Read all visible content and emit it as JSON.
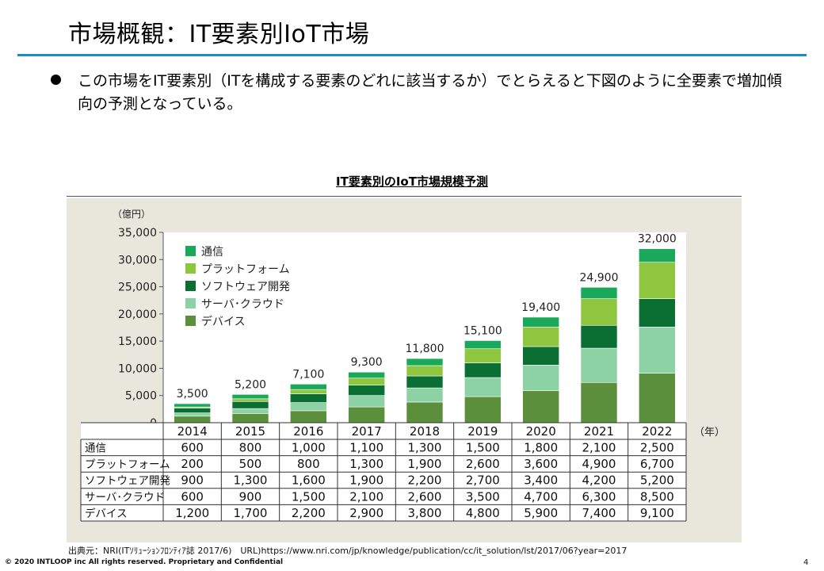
{
  "header": {
    "title": "市場概観：IT要素別IoT市場"
  },
  "bullet": {
    "text": "この市場をIT要素別（ITを構成する要素のどれに該当するか）でとらえると下図のように全要素で増加傾向の予測となっている。"
  },
  "chart_data": {
    "type": "bar",
    "stacked": true,
    "title": "IT要素別のIoT市場規模予測",
    "ylabel": "（億円）",
    "xlabel": "（年）",
    "ylim": [
      0,
      35000
    ],
    "yticks": [
      "35,000",
      "30,000",
      "25,000",
      "20,000",
      "15,000",
      "10,000",
      "5,000",
      "0"
    ],
    "ytick_values": [
      35000,
      30000,
      25000,
      20000,
      15000,
      10000,
      5000,
      0
    ],
    "categories": [
      "2014",
      "2015",
      "2016",
      "2017",
      "2018",
      "2019",
      "2020",
      "2021",
      "2022"
    ],
    "totals": [
      "3,500",
      "5,200",
      "7,100",
      "9,300",
      "11,800",
      "15,100",
      "19,400",
      "24,900",
      "32,000"
    ],
    "total_values": [
      3500,
      5200,
      7100,
      9300,
      11800,
      15100,
      19400,
      24900,
      32000
    ],
    "legend_position": "top-left",
    "series": [
      {
        "name": "デバイス",
        "color": "#5b8f3c",
        "values": [
          1200,
          1700,
          2200,
          2900,
          3800,
          4800,
          5900,
          7400,
          9100
        ],
        "labels": [
          "1,200",
          "1,700",
          "2,200",
          "2,900",
          "3,800",
          "4,800",
          "5,900",
          "7,400",
          "9,100"
        ]
      },
      {
        "name": "サーバ･クラウド",
        "color": "#8cd2a4",
        "values": [
          600,
          900,
          1500,
          2100,
          2600,
          3500,
          4700,
          6300,
          8500
        ],
        "labels": [
          "600",
          "900",
          "1,500",
          "2,100",
          "2,600",
          "3,500",
          "4,700",
          "6,300",
          "8,500"
        ]
      },
      {
        "name": "ソフトウェア開発",
        "color": "#0b6e33",
        "values": [
          900,
          1300,
          1600,
          1900,
          2200,
          2700,
          3400,
          4200,
          5200
        ],
        "labels": [
          "900",
          "1,300",
          "1,600",
          "1,900",
          "2,200",
          "2,700",
          "3,400",
          "4,200",
          "5,200"
        ]
      },
      {
        "name": "プラットフォーム",
        "color": "#8ec63f",
        "values": [
          200,
          500,
          800,
          1300,
          1900,
          2600,
          3600,
          4900,
          6700
        ],
        "labels": [
          "200",
          "500",
          "800",
          "1,300",
          "1,900",
          "2,600",
          "3,600",
          "4,900",
          "6,700"
        ]
      },
      {
        "name": "通信",
        "color": "#1aa85a",
        "values": [
          600,
          800,
          1000,
          1100,
          1300,
          1500,
          1800,
          2100,
          2500
        ],
        "labels": [
          "600",
          "800",
          "1,000",
          "1,100",
          "1,300",
          "1,500",
          "1,800",
          "2,100",
          "2,500"
        ]
      }
    ],
    "legend_order": [
      "通信",
      "プラットフォーム",
      "ソフトウェア開発",
      "サーバ･クラウド",
      "デバイス"
    ],
    "table_row_order": [
      "通信",
      "プラットフォーム",
      "ソフトウェア開発",
      "サーバ･クラウド",
      "デバイス"
    ]
  },
  "source": {
    "text": "出典元：NRI(ITｿﾘｭｰｼｮﾝﾌﾛﾝﾃｨｱ誌 2017/6)　URL)https://www.nri.com/jp/knowledge/publication/cc/it_solution/lst/2017/06?year=2017"
  },
  "footer": {
    "copyright": "© 2020 INTLOOP inc All rights reserved.  Proprietary and Confidential",
    "page_number": "4"
  }
}
